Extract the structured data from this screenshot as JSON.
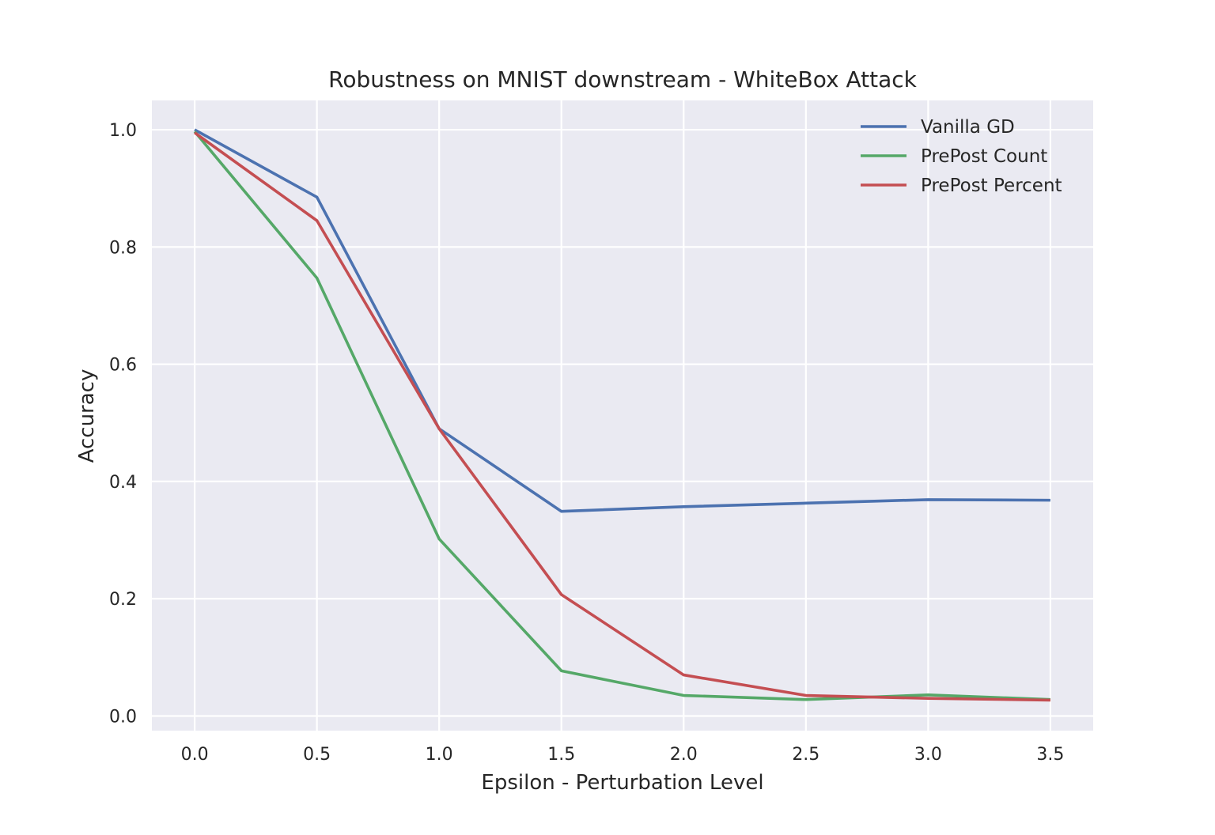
{
  "chart_data": {
    "type": "line",
    "title": "Robustness on MNIST downstream - WhiteBox Attack",
    "xlabel": "Epsilon - Perturbation Level",
    "ylabel": "Accuracy",
    "x": [
      0.0,
      0.5,
      1.0,
      1.5,
      2.0,
      2.5,
      3.0,
      3.5
    ],
    "xlim": [
      -0.175,
      3.675
    ],
    "ylim": [
      -0.025,
      1.05
    ],
    "xticks": [
      0.0,
      0.5,
      1.0,
      1.5,
      2.0,
      2.5,
      3.0,
      3.5
    ],
    "xtick_labels": [
      "0.0",
      "0.5",
      "1.0",
      "1.5",
      "2.0",
      "2.5",
      "3.0",
      "3.5"
    ],
    "yticks": [
      0.0,
      0.2,
      0.4,
      0.6,
      0.8,
      1.0
    ],
    "ytick_labels": [
      "0.0",
      "0.2",
      "0.4",
      "0.6",
      "0.8",
      "1.0"
    ],
    "grid": true,
    "legend_position": "top-right",
    "series": [
      {
        "name": "Vanilla GD",
        "color": "#4c72b0",
        "values": [
          1.0,
          0.885,
          0.49,
          0.349,
          0.357,
          0.363,
          0.369,
          0.368
        ]
      },
      {
        "name": "PrePost Count",
        "color": "#55a868",
        "values": [
          0.997,
          0.747,
          0.302,
          0.077,
          0.035,
          0.028,
          0.036,
          0.028
        ]
      },
      {
        "name": "PrePost Percent",
        "color": "#c44e52",
        "values": [
          0.995,
          0.845,
          0.49,
          0.207,
          0.07,
          0.035,
          0.03,
          0.027
        ]
      }
    ]
  }
}
